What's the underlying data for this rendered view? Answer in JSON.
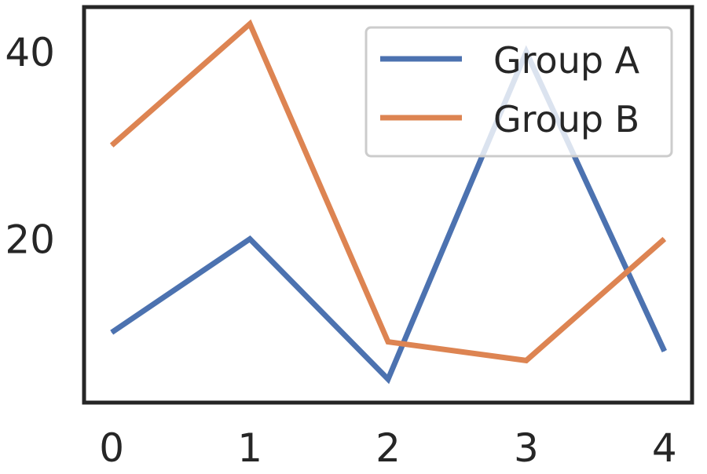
{
  "chart_data": {
    "type": "line",
    "title": "",
    "xlabel": "",
    "ylabel": "",
    "x": [
      0,
      1,
      2,
      3,
      4
    ],
    "xlim": [
      -0.2,
      4.2
    ],
    "ylim": [
      2.5,
      44.8
    ],
    "xticks": [
      0,
      1,
      2,
      3,
      4
    ],
    "yticks": [
      20,
      40
    ],
    "xtick_labels": [
      "0",
      "1",
      "2",
      "3",
      "4"
    ],
    "ytick_labels": [
      "20",
      "40"
    ],
    "grid": false,
    "legend_position": "top-right",
    "series": [
      {
        "name": "Group A",
        "color": "#4c72b0",
        "values": [
          10,
          20,
          5,
          40,
          8
        ]
      },
      {
        "name": "Group B",
        "color": "#dd8452",
        "values": [
          30,
          43,
          9,
          7,
          20
        ]
      }
    ]
  }
}
